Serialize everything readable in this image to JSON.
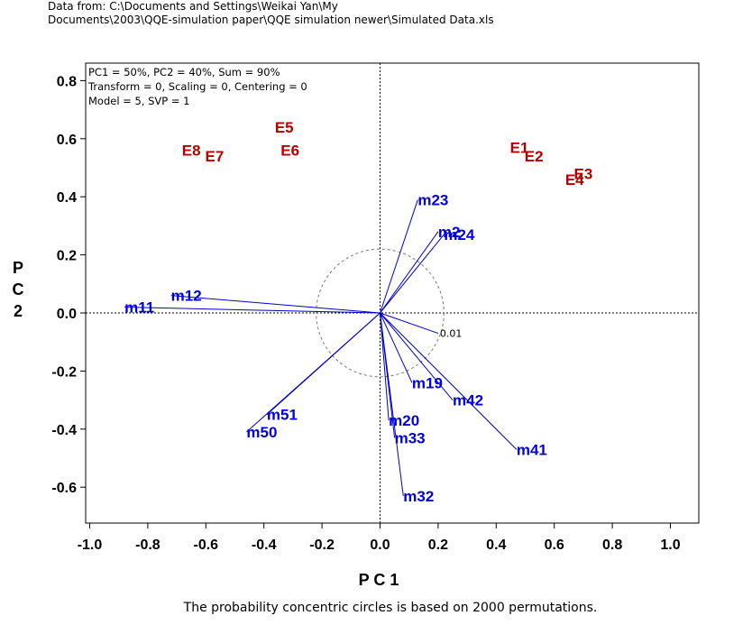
{
  "source": {
    "line1": "Data from: C:\\Documents and Settings\\Weikai Yan\\My",
    "line2": "Documents\\2003\\QQE-simulation paper\\QQE simulation newer\\Simulated Data.xls"
  },
  "info": {
    "line1": "PC1 = 50%, PC2 = 40%, Sum = 90%",
    "line2": "Transform = 0, Scaling = 0, Centering = 0",
    "line3": "Model = 5, SVP = 1"
  },
  "caption": "The probability concentric circles is based on 2000 permutations.",
  "chart_data": {
    "type": "scatter",
    "xlabel": "P C 1",
    "ylabel": "P C 2",
    "xlim": [
      -1.0,
      1.1
    ],
    "ylim": [
      -0.72,
      0.86
    ],
    "xticks": [
      -1.0,
      -0.8,
      -0.6,
      -0.4,
      -0.2,
      0.0,
      0.2,
      0.4,
      0.6,
      0.8,
      1.0
    ],
    "xtick_labels": [
      "-1.0",
      "-0.8",
      "-0.6",
      "-0.4",
      "-0.2",
      "0.0",
      "0.2",
      "0.4",
      "0.6",
      "0.8",
      "1.0"
    ],
    "yticks": [
      0.8,
      0.6,
      0.4,
      0.2,
      0.0,
      -0.2,
      -0.4,
      -0.6
    ],
    "ytick_labels": [
      "0.8",
      "0.6",
      "0.4",
      "0.2",
      "0.0",
      "-0.2",
      "-0.4",
      "-0.6"
    ],
    "grid": false,
    "environments": [
      {
        "label": "E1",
        "x": 0.48,
        "y": 0.57
      },
      {
        "label": "E2",
        "x": 0.53,
        "y": 0.54
      },
      {
        "label": "E3",
        "x": 0.7,
        "y": 0.48
      },
      {
        "label": "E4",
        "x": 0.67,
        "y": 0.46
      },
      {
        "label": "E5",
        "x": -0.33,
        "y": 0.64
      },
      {
        "label": "E6",
        "x": -0.31,
        "y": 0.56
      },
      {
        "label": "E7",
        "x": -0.57,
        "y": 0.54
      },
      {
        "label": "E8",
        "x": -0.65,
        "y": 0.56
      }
    ],
    "vectors": [
      {
        "label": "m23",
        "x": 0.13,
        "y": 0.39
      },
      {
        "label": "m2",
        "x": 0.2,
        "y": 0.28
      },
      {
        "label": "m24",
        "x": 0.22,
        "y": 0.27
      },
      {
        "label": "m12",
        "x": -0.72,
        "y": 0.06
      },
      {
        "label": "m11",
        "x": -0.88,
        "y": 0.02
      },
      {
        "label": "m19",
        "x": 0.11,
        "y": -0.24
      },
      {
        "label": "m42",
        "x": 0.25,
        "y": -0.3
      },
      {
        "label": "m41",
        "x": 0.47,
        "y": -0.47
      },
      {
        "label": "m51",
        "x": -0.39,
        "y": -0.35
      },
      {
        "label": "m50",
        "x": -0.46,
        "y": -0.41
      },
      {
        "label": "m20",
        "x": 0.03,
        "y": -0.37
      },
      {
        "label": "m33",
        "x": 0.05,
        "y": -0.43
      },
      {
        "label": "m32",
        "x": 0.08,
        "y": -0.63
      },
      {
        "label": "",
        "x": 0.2,
        "y": -0.07
      }
    ],
    "circle": {
      "radius": 0.22,
      "label": "0.01"
    },
    "colors": {
      "environment": "#b40000",
      "vector": "#0000e0",
      "vector_line": "#0000cc",
      "axis": "#000000",
      "circle": "#777777"
    }
  }
}
